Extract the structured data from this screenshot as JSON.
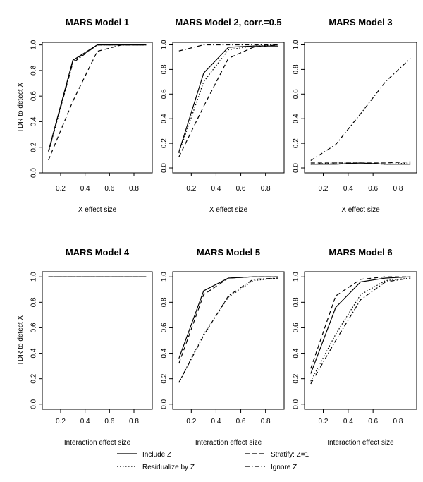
{
  "chart_data": [
    {
      "type": "line",
      "title": "MARS Model 1",
      "xlabel": "X effect size",
      "ylabel": "TDR to detect X",
      "x": [
        0.1,
        0.3,
        0.5,
        0.7,
        0.9
      ],
      "xlim": [
        0.05,
        0.95
      ],
      "ylim": [
        0,
        1.02
      ],
      "xticks": [
        "0.2",
        "0.4",
        "0.6",
        "0.8"
      ],
      "yticks": [
        "0.0",
        "0.2",
        "0.4",
        "0.6",
        "0.8",
        "1.0"
      ],
      "series": [
        {
          "name": "Include Z",
          "values": [
            0.17,
            0.88,
            1.0,
            1.0,
            1.0
          ]
        },
        {
          "name": "Stratify: Z=1",
          "values": [
            0.1,
            0.56,
            0.95,
            1.0,
            1.0
          ]
        },
        {
          "name": "Residualize by Z",
          "values": [
            0.16,
            0.87,
            1.0,
            1.0,
            1.0
          ]
        },
        {
          "name": "Ignore Z",
          "values": [
            0.16,
            0.86,
            1.0,
            1.0,
            1.0
          ]
        }
      ]
    },
    {
      "type": "line",
      "title": "MARS Model 2, corr.=0.5",
      "xlabel": "X effect size",
      "ylabel": "",
      "x": [
        0.1,
        0.3,
        0.5,
        0.7,
        0.9
      ],
      "xlim": [
        0.05,
        0.95
      ],
      "ylim": [
        -0.04,
        1.02
      ],
      "xticks": [
        "0.2",
        "0.4",
        "0.6",
        "0.8"
      ],
      "yticks": [
        "0.0",
        "0.2",
        "0.4",
        "0.6",
        "0.8",
        "1.0"
      ],
      "series": [
        {
          "name": "Include Z",
          "values": [
            0.13,
            0.77,
            0.98,
            0.99,
            0.99
          ]
        },
        {
          "name": "Stratify: Z=1",
          "values": [
            0.09,
            0.5,
            0.89,
            0.98,
            1.0
          ]
        },
        {
          "name": "Residualize by Z",
          "values": [
            0.12,
            0.7,
            0.96,
            0.99,
            1.0
          ]
        },
        {
          "name": "Ignore Z",
          "values": [
            0.95,
            1.0,
            1.0,
            1.0,
            1.0
          ]
        }
      ]
    },
    {
      "type": "line",
      "title": "MARS Model 3",
      "xlabel": "X effect size",
      "ylabel": "",
      "x": [
        0.1,
        0.3,
        0.5,
        0.7,
        0.9
      ],
      "xlim": [
        0.05,
        0.95
      ],
      "ylim": [
        -0.04,
        1.02
      ],
      "xticks": [
        "0.2",
        "0.4",
        "0.6",
        "0.8"
      ],
      "yticks": [
        "0.0",
        "0.2",
        "0.4",
        "0.6",
        "0.8",
        "1.0"
      ],
      "series": [
        {
          "name": "Include Z",
          "values": [
            0.03,
            0.03,
            0.04,
            0.03,
            0.03
          ]
        },
        {
          "name": "Stratify: Z=1",
          "values": [
            0.04,
            0.04,
            0.04,
            0.04,
            0.05
          ]
        },
        {
          "name": "Residualize by Z",
          "values": [
            0.03,
            0.04,
            0.04,
            0.03,
            0.04
          ]
        },
        {
          "name": "Ignore Z",
          "values": [
            0.06,
            0.19,
            0.44,
            0.7,
            0.89
          ]
        }
      ]
    },
    {
      "type": "line",
      "title": "MARS Model 4",
      "xlabel": "Interaction effect size",
      "ylabel": "TDR to detect X",
      "x": [
        0.1,
        0.3,
        0.5,
        0.7,
        0.9
      ],
      "xlim": [
        0.05,
        0.95
      ],
      "ylim": [
        -0.04,
        1.04
      ],
      "xticks": [
        "0.2",
        "0.4",
        "0.6",
        "0.8"
      ],
      "yticks": [
        "0.0",
        "0.2",
        "0.4",
        "0.6",
        "0.8",
        "1.0"
      ],
      "series": [
        {
          "name": "Include Z",
          "values": [
            1.0,
            1.0,
            1.0,
            1.0,
            1.0
          ]
        },
        {
          "name": "Stratify: Z=1",
          "values": [
            1.0,
            1.0,
            1.0,
            1.0,
            1.0
          ]
        },
        {
          "name": "Residualize by Z",
          "values": [
            1.0,
            1.0,
            1.0,
            1.0,
            1.0
          ]
        },
        {
          "name": "Ignore Z",
          "values": [
            1.0,
            1.0,
            1.0,
            1.0,
            1.0
          ]
        }
      ]
    },
    {
      "type": "line",
      "title": "MARS Model 5",
      "xlabel": "Interaction effect size",
      "ylabel": "",
      "x": [
        0.1,
        0.3,
        0.5,
        0.7,
        0.9
      ],
      "xlim": [
        0.05,
        0.95
      ],
      "ylim": [
        -0.04,
        1.04
      ],
      "xticks": [
        "0.2",
        "0.4",
        "0.6",
        "0.8"
      ],
      "yticks": [
        "0.0",
        "0.2",
        "0.4",
        "0.6",
        "0.8",
        "1.0"
      ],
      "series": [
        {
          "name": "Include Z",
          "values": [
            0.36,
            0.89,
            0.99,
            1.0,
            1.0
          ]
        },
        {
          "name": "Stratify: Z=1",
          "values": [
            0.32,
            0.86,
            0.99,
            1.0,
            1.0
          ]
        },
        {
          "name": "Residualize by Z",
          "values": [
            0.17,
            0.55,
            0.84,
            0.97,
            0.99
          ]
        },
        {
          "name": "Ignore Z",
          "values": [
            0.17,
            0.54,
            0.85,
            0.98,
            0.99
          ]
        }
      ]
    },
    {
      "type": "line",
      "title": "MARS Model 6",
      "xlabel": "Interaction effect size",
      "ylabel": "",
      "x": [
        0.1,
        0.3,
        0.5,
        0.7,
        0.9
      ],
      "xlim": [
        0.05,
        0.95
      ],
      "ylim": [
        -0.04,
        1.04
      ],
      "xticks": [
        "0.2",
        "0.4",
        "0.6",
        "0.8"
      ],
      "yticks": [
        "0.0",
        "0.2",
        "0.4",
        "0.6",
        "0.8",
        "1.0"
      ],
      "series": [
        {
          "name": "Include Z",
          "values": [
            0.24,
            0.76,
            0.96,
            0.99,
            1.0
          ]
        },
        {
          "name": "Stratify: Z=1",
          "values": [
            0.28,
            0.85,
            0.98,
            1.0,
            1.0
          ]
        },
        {
          "name": "Residualize by Z",
          "values": [
            0.18,
            0.55,
            0.86,
            0.97,
            0.99
          ]
        },
        {
          "name": "Ignore Z",
          "values": [
            0.16,
            0.5,
            0.82,
            0.96,
            0.99
          ]
        }
      ]
    }
  ],
  "legend": {
    "entries": [
      {
        "label": "Include Z",
        "style": "solid"
      },
      {
        "label": "Stratify: Z=1",
        "style": "dashed"
      },
      {
        "label": "Residualize by Z",
        "style": "dotted"
      },
      {
        "label": "Ignore Z",
        "style": "dashdot"
      }
    ]
  }
}
